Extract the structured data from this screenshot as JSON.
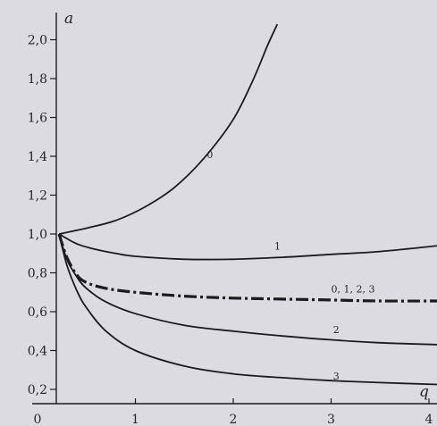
{
  "chart_data": {
    "type": "line",
    "title": "",
    "xlabel": "q",
    "ylabel": "a",
    "xlim": [
      0,
      4.15
    ],
    "ylim": [
      0.15,
      2.07
    ],
    "grid": false,
    "x_ticks": [
      0,
      1,
      2,
      3,
      4
    ],
    "x_tick_labels": [
      "0",
      "1",
      "2",
      "3",
      "4"
    ],
    "y_ticks": [
      0.2,
      0.4,
      0.6,
      0.8,
      1.0,
      1.2,
      1.4,
      1.6,
      1.8,
      2.0
    ],
    "y_tick_labels": [
      "0,2",
      "0,4",
      "0,6",
      "0,8",
      "1,0",
      "1,2",
      "1,4",
      "1,6",
      "1,8",
      "2,0"
    ],
    "series": [
      {
        "name": "0",
        "style": "solid",
        "x": [
          0.22,
          0.5,
          0.8,
          1.1,
          1.4,
          1.7,
          2.0,
          2.2,
          2.35,
          2.45
        ],
        "y": [
          1.0,
          1.03,
          1.07,
          1.14,
          1.24,
          1.39,
          1.59,
          1.79,
          1.97,
          2.08
        ]
      },
      {
        "name": "1",
        "style": "solid",
        "x": [
          0.22,
          0.4,
          0.6,
          0.8,
          1.0,
          1.5,
          2.0,
          2.5,
          3.0,
          3.5,
          4.1
        ],
        "y": [
          1.0,
          0.95,
          0.92,
          0.9,
          0.885,
          0.87,
          0.87,
          0.88,
          0.895,
          0.91,
          0.94
        ]
      },
      {
        "name": "0, 1, 2, 3",
        "style": "dash-dot",
        "x": [
          0.22,
          0.3,
          0.4,
          0.5,
          0.7,
          1.0,
          1.5,
          2.0,
          2.5,
          3.0,
          3.5,
          4.1
        ],
        "y": [
          1.0,
          0.88,
          0.79,
          0.75,
          0.72,
          0.7,
          0.68,
          0.67,
          0.665,
          0.66,
          0.655,
          0.655
        ]
      },
      {
        "name": "2",
        "style": "solid",
        "x": [
          0.22,
          0.3,
          0.4,
          0.5,
          0.7,
          1.0,
          1.5,
          2.0,
          2.5,
          3.0,
          3.5,
          4.1
        ],
        "y": [
          1.0,
          0.87,
          0.78,
          0.72,
          0.65,
          0.59,
          0.53,
          0.5,
          0.475,
          0.455,
          0.44,
          0.43
        ]
      },
      {
        "name": "3",
        "style": "solid",
        "x": [
          0.22,
          0.3,
          0.4,
          0.5,
          0.7,
          1.0,
          1.5,
          2.0,
          2.5,
          3.0,
          3.5,
          4.1
        ],
        "y": [
          1.0,
          0.84,
          0.71,
          0.62,
          0.5,
          0.4,
          0.32,
          0.28,
          0.26,
          0.245,
          0.235,
          0.225
        ]
      }
    ],
    "curve_labels": [
      {
        "text": "0",
        "x": 1.73,
        "y": 1.39
      },
      {
        "text": "1",
        "x": 2.42,
        "y": 0.92
      },
      {
        "text": "0, 1, 2, 3",
        "x": 3.0,
        "y": 0.7
      },
      {
        "text": "2",
        "x": 3.02,
        "y": 0.49
      },
      {
        "text": "3",
        "x": 3.02,
        "y": 0.25
      }
    ]
  }
}
